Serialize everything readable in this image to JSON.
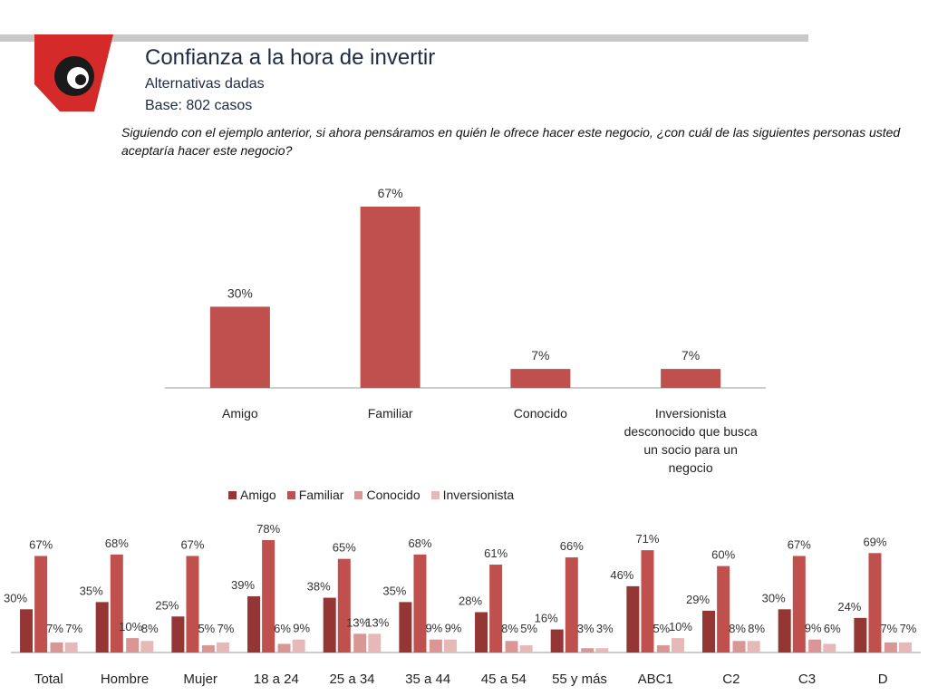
{
  "header": {
    "title": "Confianza a la hora de invertir",
    "subtitle": "Alternativas dadas",
    "base": "Base: 802 casos",
    "question": "Siguiendo con el ejemplo anterior, si ahora pensáramos en quién le ofrece hacer este negocio, ¿con cuál de las siguientes personas usted aceptaría hacer este negocio?"
  },
  "colors": {
    "amigo": "#943634",
    "familiar": "#c0504d",
    "conocido": "#d99694",
    "inversionista": "#e6b9b8",
    "accent_red": "#d42a2a"
  },
  "chart_data": [
    {
      "type": "bar",
      "title": "Confianza a la hora de invertir",
      "categories": [
        "Amigo",
        "Familiar",
        "Conocido",
        "Inversionista desconocido que busca un socio para un negocio"
      ],
      "values": [
        30,
        67,
        7,
        7
      ],
      "value_labels": [
        "30%",
        "67%",
        "7%",
        "7%"
      ],
      "ylim": [
        0,
        67
      ]
    },
    {
      "type": "bar",
      "categories": [
        "Total",
        "Hombre",
        "Mujer",
        "18 a 24",
        "25 a 34",
        "35 a 44",
        "45 a 54",
        "55 y más",
        "ABC1",
        "C2",
        "C3",
        "D"
      ],
      "legend": [
        "Amigo",
        "Familiar",
        "Conocido",
        "Inversionista"
      ],
      "series": [
        {
          "name": "Amigo",
          "values": [
            30,
            35,
            25,
            39,
            38,
            35,
            28,
            16,
            46,
            29,
            30,
            24
          ]
        },
        {
          "name": "Familiar",
          "values": [
            67,
            68,
            67,
            78,
            65,
            68,
            61,
            66,
            71,
            60,
            67,
            69
          ]
        },
        {
          "name": "Conocido",
          "values": [
            7,
            10,
            5,
            6,
            13,
            9,
            8,
            3,
            5,
            8,
            9,
            7
          ]
        },
        {
          "name": "Inversionista",
          "values": [
            7,
            8,
            7,
            9,
            13,
            9,
            5,
            3,
            10,
            8,
            6,
            7
          ]
        }
      ],
      "ylim": [
        0,
        78
      ]
    }
  ]
}
